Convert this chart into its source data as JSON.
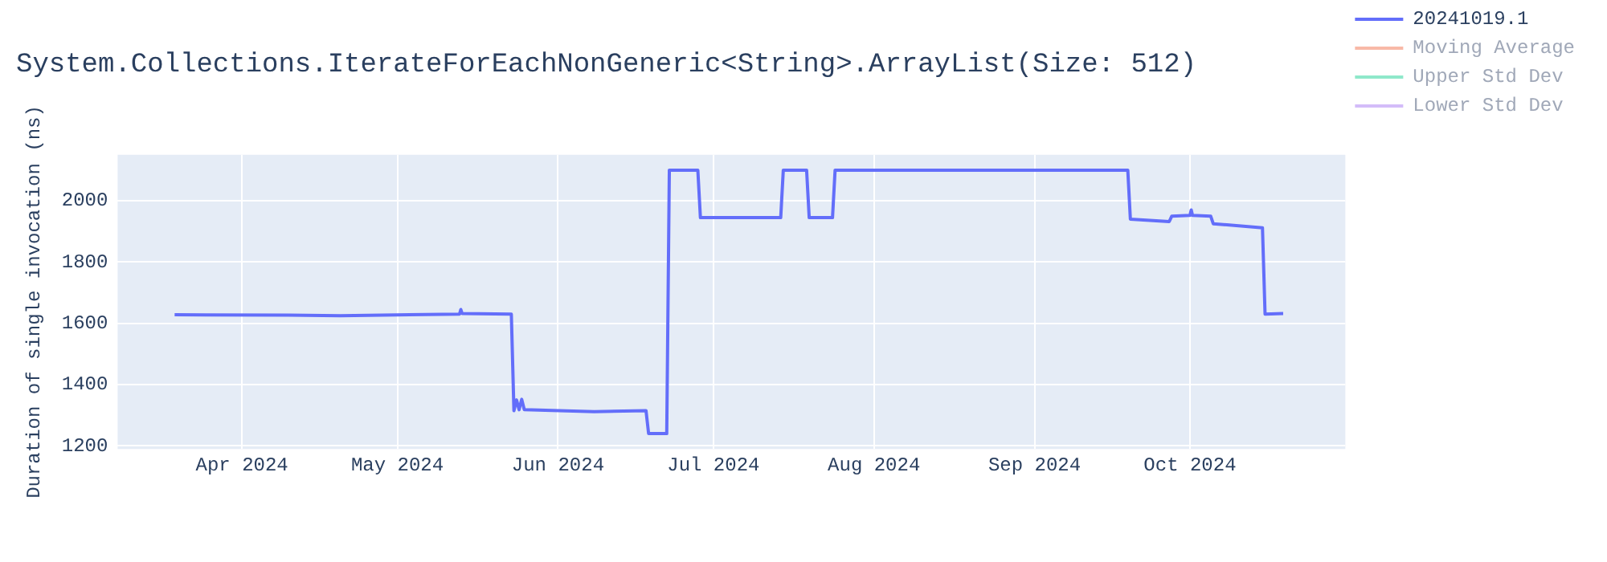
{
  "chart_data": {
    "type": "line",
    "title": "System.Collections.IterateForEachNonGeneric<String>.ArrayList(Size: 512)",
    "ylabel": "Duration of single invocation (ns)",
    "xlim": [
      "2024-03-08",
      "2024-10-31"
    ],
    "xticks": [
      {
        "value": "2024-04-01",
        "label": "Apr 2024"
      },
      {
        "value": "2024-05-01",
        "label": "May 2024"
      },
      {
        "value": "2024-06-01",
        "label": "Jun 2024"
      },
      {
        "value": "2024-07-01",
        "label": "Jul 2024"
      },
      {
        "value": "2024-08-01",
        "label": "Aug 2024"
      },
      {
        "value": "2024-09-01",
        "label": "Sep 2024"
      },
      {
        "value": "2024-10-01",
        "label": "Oct 2024"
      }
    ],
    "ylim": [
      1190,
      2150
    ],
    "yticks": [
      1200,
      1400,
      1600,
      1800,
      2000
    ],
    "grid": true,
    "legend": "top right",
    "marker": "none",
    "line_style": "solid",
    "series": [
      {
        "name": "20241019.1",
        "color": "#636efa",
        "x": [
          "2024-03-19",
          "2024-04-10",
          "2024-04-20",
          "2024-05-13",
          "2024-05-13T06:00",
          "2024-05-13T12:00",
          "2024-05-23",
          "2024-05-23T12:00",
          "2024-05-24",
          "2024-05-24T12:00",
          "2024-05-25",
          "2024-05-25T12:00",
          "2024-06-08",
          "2024-06-18",
          "2024-06-18T12:00",
          "2024-06-22",
          "2024-06-22T12:00",
          "2024-06-28",
          "2024-06-28T12:00",
          "2024-07-14",
          "2024-07-14T12:00",
          "2024-07-19",
          "2024-07-19T12:00",
          "2024-07-24",
          "2024-07-24T12:00",
          "2024-09-19",
          "2024-09-19T12:00",
          "2024-09-27",
          "2024-09-27T12:00",
          "2024-10-01",
          "2024-10-01T06:00",
          "2024-10-01T12:00",
          "2024-10-05",
          "2024-10-05T12:00",
          "2024-10-15",
          "2024-10-15T12:00",
          "2024-10-19"
        ],
        "values": [
          1628,
          1627,
          1625,
          1630,
          1645,
          1632,
          1630,
          1315,
          1350,
          1318,
          1352,
          1318,
          1312,
          1315,
          1240,
          1240,
          2100,
          2100,
          1945,
          1945,
          2100,
          2100,
          1945,
          1945,
          2100,
          2100,
          1940,
          1932,
          1950,
          1952,
          1970,
          1952,
          1950,
          1925,
          1912,
          1630,
          1632
        ]
      },
      {
        "name": "Moving Average",
        "color": "#f8b9a7"
      },
      {
        "name": "Upper Std Dev",
        "color": "#8fe8ca"
      },
      {
        "name": "Lower Std Dev",
        "color": "#d3bcf9"
      }
    ]
  }
}
